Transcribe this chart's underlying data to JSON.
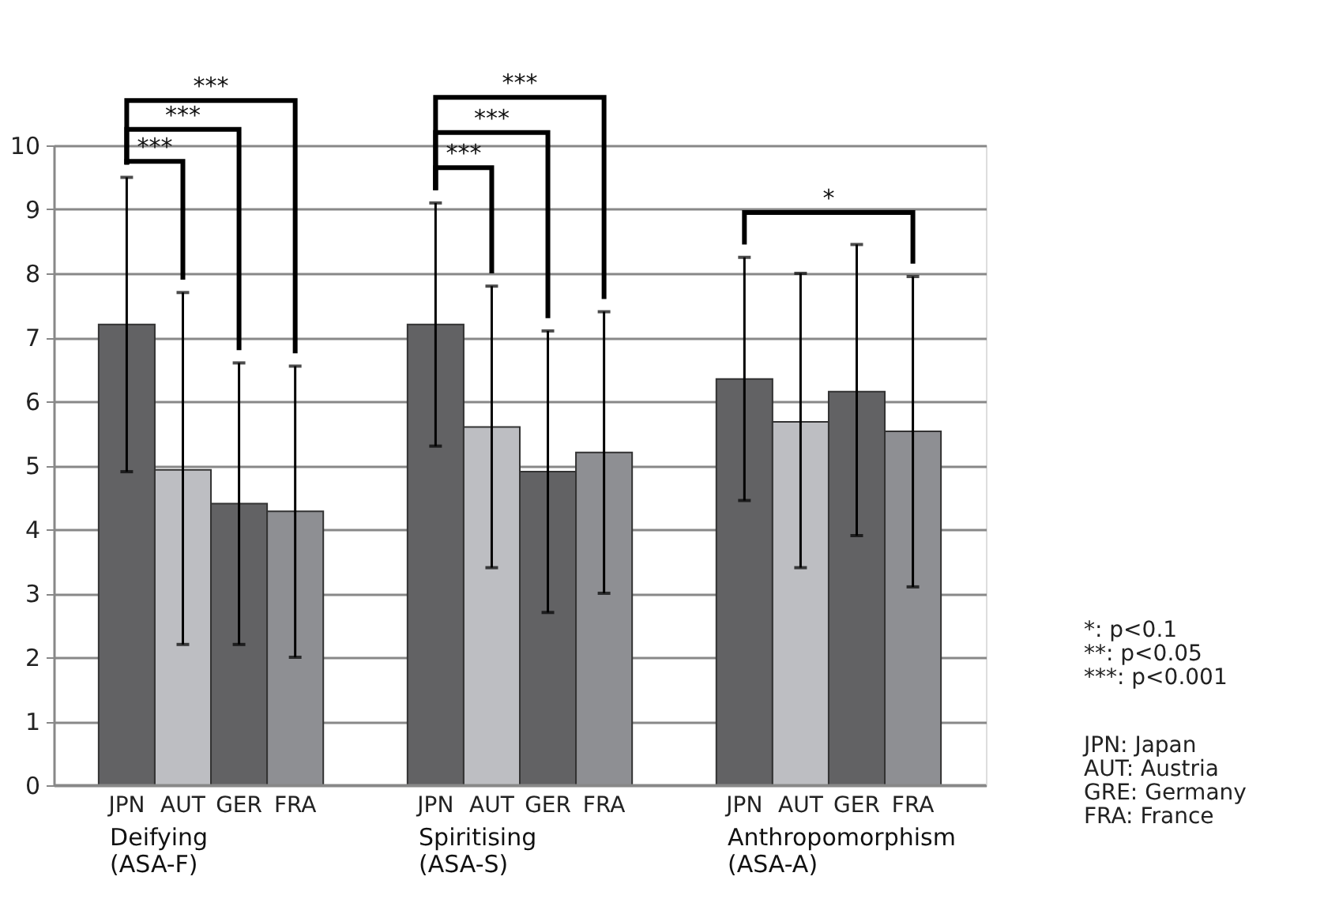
{
  "chart_data": {
    "type": "bar",
    "categories": [
      "Deifying\n(ASA-F)",
      "Spiritising\n(ASA-S)",
      "Anthropomorphism\n(ASA-A)"
    ],
    "series": [
      {
        "name": "JPN",
        "color": "#626264",
        "values": [
          7.2,
          7.2,
          6.35
        ],
        "errors": [
          [
            4.9,
            9.5
          ],
          [
            5.3,
            9.1
          ],
          [
            4.45,
            8.25
          ]
        ]
      },
      {
        "name": "AUT",
        "color": "#bdbec2",
        "values": [
          4.93,
          5.6,
          5.68
        ],
        "errors": [
          [
            2.2,
            7.7
          ],
          [
            3.4,
            7.8
          ],
          [
            3.4,
            8.0
          ]
        ]
      },
      {
        "name": "GER",
        "color": "#626264",
        "values": [
          4.4,
          4.9,
          6.15
        ],
        "errors": [
          [
            2.2,
            6.6
          ],
          [
            2.7,
            7.1
          ],
          [
            3.9,
            8.45
          ]
        ]
      },
      {
        "name": "FRA",
        "color": "#8e8f93",
        "values": [
          4.28,
          5.2,
          5.53
        ],
        "errors": [
          [
            2.0,
            6.55
          ],
          [
            3.0,
            7.4
          ],
          [
            3.1,
            7.95
          ]
        ]
      }
    ],
    "ylim": [
      0,
      10
    ],
    "yticks": [
      0,
      1,
      2,
      3,
      4,
      5,
      6,
      7,
      8,
      9,
      10
    ],
    "grid": "y",
    "annotations": [
      "***",
      "***",
      "***",
      "***",
      "***",
      "***",
      "*",
      "*: p<0.1",
      "**: p<0.05",
      "***: p<0.001",
      "JPN: Japan",
      "AUT: Austria",
      "GRE: Germany",
      "FRA: France"
    ]
  }
}
